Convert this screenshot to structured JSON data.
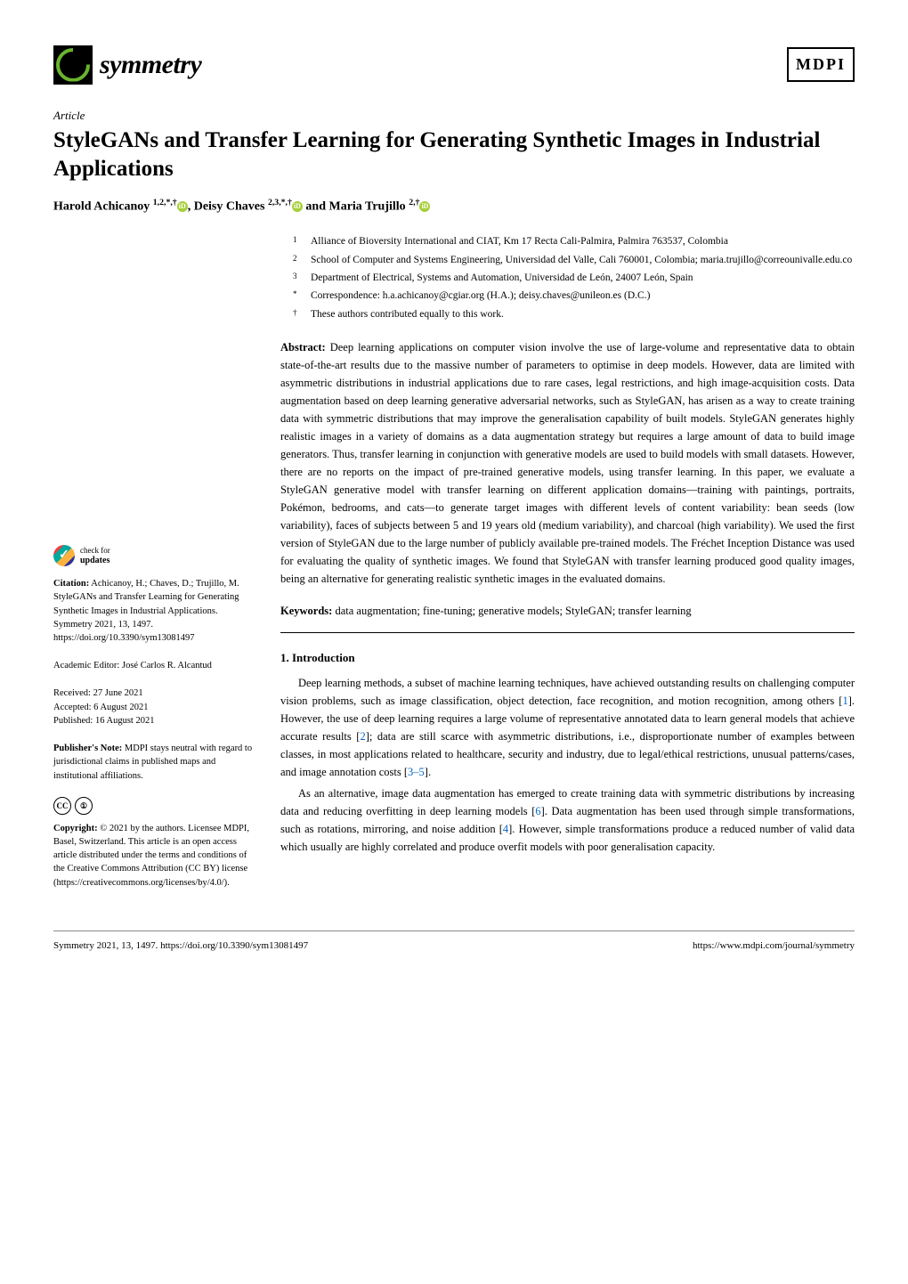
{
  "header": {
    "journal_name": "symmetry",
    "publisher_logo": "MDPI"
  },
  "article_type": "Article",
  "title": "StyleGANs and Transfer Learning for Generating Synthetic Images in Industrial Applications",
  "authors_html": "Harold Achicanoy <sup>1,2,*,†</sup><span class='orcid-icon'>iD</span>, Deisy Chaves <sup>2,3,*,†</sup><span class='orcid-icon'>iD</span> and Maria Trujillo <sup>2,†</sup><span class='orcid-icon'>iD</span>",
  "affiliations": [
    {
      "sup": "1",
      "text": "Alliance of Bioversity International and CIAT, Km 17 Recta Cali-Palmira, Palmira 763537, Colombia"
    },
    {
      "sup": "2",
      "text": "School of Computer and Systems Engineering, Universidad del Valle, Cali 760001, Colombia; maria.trujillo@correounivalle.edu.co"
    },
    {
      "sup": "3",
      "text": "Department of Electrical, Systems and Automation, Universidad de León, 24007 León, Spain"
    },
    {
      "sup": "*",
      "text": "Correspondence: h.a.achicanoy@cgiar.org (H.A.); deisy.chaves@unileon.es (D.C.)"
    },
    {
      "sup": "†",
      "text": "These authors contributed equally to this work."
    }
  ],
  "abstract_label": "Abstract:",
  "abstract": "Deep learning applications on computer vision involve the use of large-volume and representative data to obtain state-of-the-art results due to the massive number of parameters to optimise in deep models. However, data are limited with asymmetric distributions in industrial applications due to rare cases, legal restrictions, and high image-acquisition costs. Data augmentation based on deep learning generative adversarial networks, such as StyleGAN, has arisen as a way to create training data with symmetric distributions that may improve the generalisation capability of built models. StyleGAN generates highly realistic images in a variety of domains as a data augmentation strategy but requires a large amount of data to build image generators. Thus, transfer learning in conjunction with generative models are used to build models with small datasets. However, there are no reports on the impact of pre-trained generative models, using transfer learning. In this paper, we evaluate a StyleGAN generative model with transfer learning on different application domains—training with paintings, portraits, Pokémon, bedrooms, and cats—to generate target images with different levels of content variability: bean seeds (low variability), faces of subjects between 5 and 19 years old (medium variability), and charcoal (high variability). We used the first version of StyleGAN due to the large number of publicly available pre-trained models. The Fréchet Inception Distance was used for evaluating the quality of synthetic images. We found that StyleGAN with transfer learning produced good quality images, being an alternative for generating realistic synthetic images in the evaluated domains.",
  "keywords_label": "Keywords:",
  "keywords": "data augmentation; fine-tuning; generative models; StyleGAN; transfer learning",
  "section1_heading": "1. Introduction",
  "para1": "Deep learning methods, a subset of machine learning techniques, have achieved outstanding results on challenging computer vision problems, such as image classification, object detection, face recognition, and motion recognition, among others [1]. However, the use of deep learning requires a large volume of representative annotated data to learn general models that achieve accurate results [2]; data are still scarce with asymmetric distributions, i.e., disproportionate number of examples between classes, in most applications related to healthcare, security and industry, due to legal/ethical restrictions, unusual patterns/cases, and image annotation costs [3–5].",
  "para2": "As an alternative, image data augmentation has emerged to create training data with symmetric distributions by increasing data and reducing overfitting in deep learning models [6]. Data augmentation has been used through simple transformations, such as rotations, mirroring, and noise addition [4]. However, simple transformations produce a reduced number of valid data which usually are highly correlated and produce overfit models with poor generalisation capacity.",
  "sidebar": {
    "check_updates_line1": "check for",
    "check_updates_line2": "updates",
    "citation_label": "Citation:",
    "citation": "Achicanoy, H.; Chaves, D.; Trujillo, M. StyleGANs and Transfer Learning for Generating Synthetic Images in Industrial Applications. Symmetry 2021, 13, 1497. https://doi.org/10.3390/sym13081497",
    "editor_label": "Academic Editor:",
    "editor": "José Carlos R. Alcantud",
    "received": "Received: 27 June 2021",
    "accepted": "Accepted: 6 August 2021",
    "published": "Published: 16 August 2021",
    "pubnote_label": "Publisher's Note:",
    "pubnote": "MDPI stays neutral with regard to jurisdictional claims in published maps and institutional affiliations.",
    "copyright_label": "Copyright:",
    "copyright": "© 2021 by the authors. Licensee MDPI, Basel, Switzerland. This article is an open access article distributed under the terms and conditions of the Creative Commons Attribution (CC BY) license (https://creativecommons.org/licenses/by/4.0/)."
  },
  "footer": {
    "left": "Symmetry 2021, 13, 1497. https://doi.org/10.3390/sym13081497",
    "right": "https://www.mdpi.com/journal/symmetry"
  }
}
